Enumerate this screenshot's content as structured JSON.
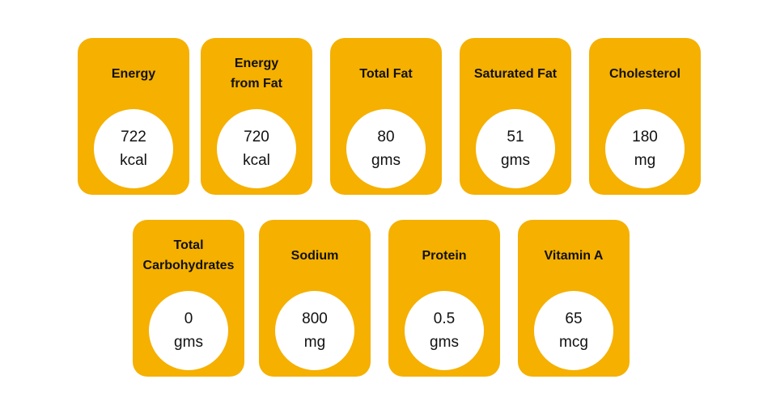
{
  "cards": [
    {
      "label": "Energy",
      "value": 722,
      "unit": "kcal"
    },
    {
      "label": "Energy from Fat",
      "value": 720,
      "unit": "kcal"
    },
    {
      "label": "Total Fat",
      "value": 80,
      "unit": "gms"
    },
    {
      "label": "Saturated Fat",
      "value": 51,
      "unit": "gms"
    },
    {
      "label": "Cholesterol",
      "value": 180,
      "unit": "mg"
    },
    {
      "label": "Total Carbohydrates",
      "value": 0,
      "unit": "gms"
    },
    {
      "label": "Sodium",
      "value": 800,
      "unit": "mg"
    },
    {
      "label": "Protein",
      "value": 0.5,
      "unit": "gms"
    },
    {
      "label": "Vitamin A",
      "value": 65,
      "unit": "mcg"
    }
  ]
}
